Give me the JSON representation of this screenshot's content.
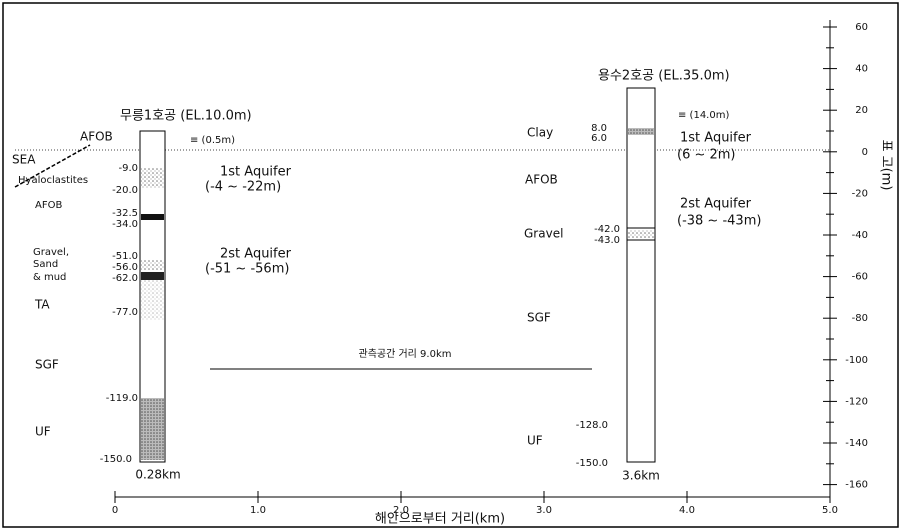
{
  "well1": {
    "title": "무릉1호공 (EL.10.0m)",
    "water_level": "≡ (0.5m)",
    "location": "0.28km",
    "layers": [
      "AFOB",
      "SEA",
      "Hyaloclastites",
      "AFOB",
      "Gravel,",
      "Sand",
      "& mud",
      "TA",
      "SGF",
      "UF"
    ],
    "depths": [
      "-9.0",
      "-20.0",
      "-32.5",
      "-34.0",
      "-51.0",
      "-56.0",
      "-62.0",
      "-77.0",
      "-119.0",
      "-150.0"
    ],
    "aquifers": [
      {
        "name": "1st Aquifer",
        "range": "(-4 ~ -22m)"
      },
      {
        "name": "2st Aquifer",
        "range": "(-51 ~ -56m)"
      }
    ]
  },
  "well2": {
    "title": "용수2호공 (EL.35.0m)",
    "water_level": "≡ (14.0m)",
    "location": "3.6km",
    "layers": [
      "Clay",
      "AFOB",
      "Gravel",
      "SGF",
      "UF"
    ],
    "depths": [
      "8.0",
      "6.0",
      "-42.0",
      "-43.0",
      "-128.0",
      "-150.0"
    ],
    "aquifers": [
      {
        "name": "1st Aquifer",
        "range": "(6 ~ 2m)"
      },
      {
        "name": "2st Aquifer",
        "range": "(-38 ~ -43m)"
      }
    ]
  },
  "distance_label": "관측공간 거리 9.0km",
  "axes": {
    "y_label": "표 고(m)",
    "y_ticks": [
      "60",
      "40",
      "20",
      "0",
      "-20",
      "-40",
      "-60",
      "-80",
      "-100",
      "-120",
      "-140",
      "-160"
    ],
    "x_label": "해안으로부터 거리(km)",
    "x_ticks": [
      "0",
      "1.0",
      "2.0",
      "3.0",
      "4.0",
      "5.0"
    ]
  }
}
